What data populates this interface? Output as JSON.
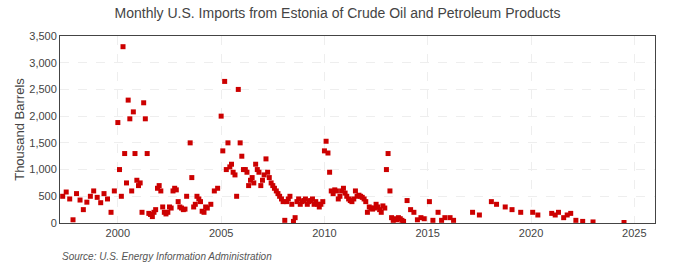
{
  "chart_data": {
    "type": "scatter",
    "title": "Monthly U.S. Imports from Estonia of Crude Oil and Petroleum Products",
    "y_label": "Thousand Barrels",
    "annotations": [
      "Source: U.S. Energy Information Administration"
    ],
    "color": "#cc0000",
    "marker": "square",
    "grid": true,
    "xlim": [
      1997.2,
      2026.0
    ],
    "xticks": [
      2000,
      2005,
      2010,
      2015,
      2020,
      2025
    ],
    "ylim": [
      0,
      3500
    ],
    "yticks": [
      0,
      500,
      {
        "value": 1000,
        "label": "1,000"
      },
      {
        "value": 1500,
        "label": "1,500"
      },
      {
        "value": 2000,
        "label": "2,000"
      },
      {
        "value": 2500,
        "label": "2,500"
      },
      {
        "value": 3000,
        "label": "3,000"
      },
      {
        "value": 3500,
        "label": "3,500"
      }
    ],
    "x": [
      1997.33,
      1997.5,
      1997.67,
      1997.83,
      1998.0,
      1998.17,
      1998.33,
      1998.5,
      1998.67,
      1998.83,
      1999.0,
      1999.17,
      1999.33,
      1999.5,
      1999.67,
      1999.83,
      2000.0,
      2000.08,
      2000.17,
      2000.25,
      2000.33,
      2000.42,
      2000.5,
      2000.58,
      2000.67,
      2000.75,
      2000.83,
      2000.92,
      2001.0,
      2001.08,
      2001.17,
      2001.25,
      2001.33,
      2001.42,
      2001.5,
      2001.58,
      2001.67,
      2001.75,
      2001.83,
      2001.92,
      2002.0,
      2002.08,
      2002.17,
      2002.25,
      2002.33,
      2002.42,
      2002.5,
      2002.58,
      2002.67,
      2002.75,
      2002.83,
      2002.92,
      2003.0,
      2003.08,
      2003.17,
      2003.25,
      2003.33,
      2003.5,
      2003.58,
      2003.67,
      2003.75,
      2003.83,
      2003.92,
      2004.0,
      2004.08,
      2004.17,
      2004.25,
      2004.33,
      2004.5,
      2004.67,
      2004.83,
      2005.0,
      2005.08,
      2005.17,
      2005.25,
      2005.33,
      2005.42,
      2005.5,
      2005.58,
      2005.67,
      2005.75,
      2005.83,
      2005.92,
      2006.0,
      2006.08,
      2006.17,
      2006.25,
      2006.33,
      2006.42,
      2006.5,
      2006.58,
      2006.67,
      2006.75,
      2006.83,
      2006.92,
      2007.0,
      2007.08,
      2007.17,
      2007.25,
      2007.33,
      2007.42,
      2007.5,
      2007.58,
      2007.67,
      2007.75,
      2007.83,
      2007.92,
      2008.0,
      2008.08,
      2008.17,
      2008.25,
      2008.33,
      2008.42,
      2008.5,
      2008.58,
      2008.67,
      2008.75,
      2008.83,
      2008.92,
      2009.0,
      2009.08,
      2009.17,
      2009.25,
      2009.33,
      2009.42,
      2009.5,
      2009.58,
      2009.67,
      2009.75,
      2009.83,
      2009.92,
      2010.0,
      2010.08,
      2010.17,
      2010.25,
      2010.33,
      2010.42,
      2010.5,
      2010.58,
      2010.67,
      2010.75,
      2010.83,
      2010.92,
      2011.0,
      2011.08,
      2011.17,
      2011.25,
      2011.33,
      2011.42,
      2011.5,
      2011.58,
      2011.67,
      2011.75,
      2011.83,
      2011.92,
      2012.0,
      2012.08,
      2012.17,
      2012.25,
      2012.33,
      2012.42,
      2012.5,
      2012.58,
      2012.67,
      2012.75,
      2012.83,
      2012.92,
      2013.0,
      2013.08,
      2013.17,
      2013.25,
      2013.33,
      2013.42,
      2013.5,
      2013.58,
      2013.67,
      2013.75,
      2013.83,
      2014.0,
      2014.17,
      2014.33,
      2014.5,
      2014.67,
      2014.83,
      2015.08,
      2015.25,
      2015.5,
      2015.67,
      2015.83,
      2016.08,
      2016.25,
      2017.17,
      2017.5,
      2018.08,
      2018.33,
      2018.75,
      2019.08,
      2019.5,
      2020.08,
      2020.33,
      2021.0,
      2021.17,
      2021.33,
      2021.58,
      2021.75,
      2021.92,
      2022.17,
      2022.5,
      2023.0,
      2024.5
    ],
    "values": [
      500,
      580,
      450,
      60,
      550,
      430,
      250,
      390,
      500,
      600,
      480,
      380,
      550,
      450,
      200,
      600,
      1880,
      1000,
      500,
      3300,
      1300,
      750,
      2300,
      1950,
      600,
      2080,
      1300,
      800,
      700,
      750,
      200,
      2250,
      1950,
      1300,
      180,
      160,
      120,
      200,
      250,
      650,
      700,
      600,
      300,
      200,
      170,
      200,
      300,
      280,
      600,
      650,
      620,
      400,
      300,
      280,
      250,
      260,
      500,
      1500,
      850,
      300,
      350,
      500,
      450,
      400,
      220,
      200,
      300,
      280,
      350,
      600,
      650,
      2000,
      1350,
      2650,
      1000,
      1500,
      1050,
      1100,
      950,
      900,
      500,
      2500,
      1500,
      1250,
      1000,
      1000,
      950,
      700,
      800,
      850,
      750,
      1100,
      1000,
      950,
      700,
      800,
      900,
      1200,
      950,
      850,
      750,
      700,
      650,
      600,
      550,
      500,
      450,
      400,
      50,
      400,
      450,
      500,
      350,
      30,
      100,
      400,
      450,
      350,
      400,
      420,
      450,
      350,
      400,
      420,
      450,
      350,
      400,
      350,
      300,
      350,
      400,
      1350,
      1530,
      1310,
      950,
      600,
      550,
      620,
      600,
      450,
      500,
      600,
      650,
      560,
      500,
      450,
      420,
      400,
      450,
      600,
      500,
      520,
      500,
      480,
      450,
      400,
      200,
      300,
      280,
      260,
      280,
      350,
      300,
      250,
      200,
      320,
      280,
      1000,
      1300,
      600,
      100,
      50,
      80,
      60,
      100,
      80,
      50,
      30,
      420,
      250,
      200,
      60,
      100,
      80,
      400,
      50,
      200,
      50,
      100,
      100,
      50,
      200,
      150,
      400,
      350,
      300,
      250,
      200,
      200,
      150,
      180,
      150,
      200,
      100,
      150,
      180,
      50,
      30,
      20,
      10
    ]
  }
}
